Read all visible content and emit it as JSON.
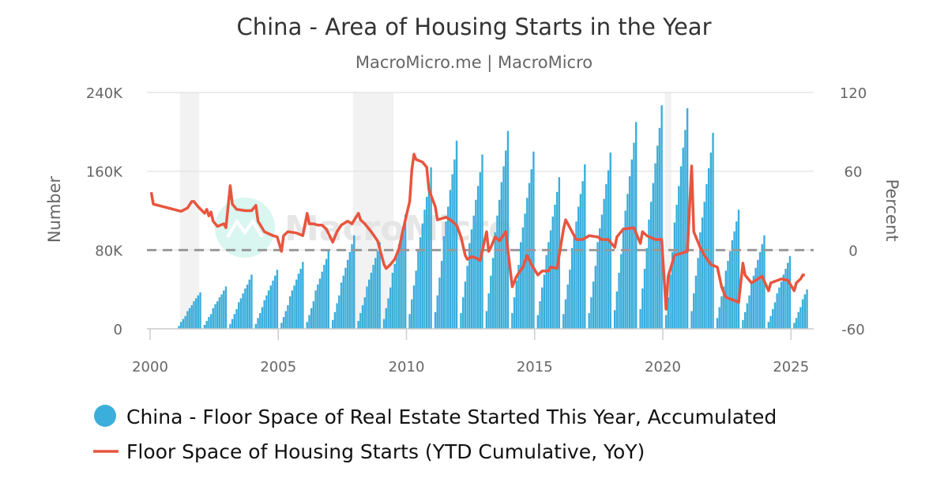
{
  "chart_data": {
    "type": "bar+line",
    "title": "China - Area of Housing Starts in the Year",
    "subtitle": "MacroMicro.me | MacroMicro",
    "watermark": "MacroMicro",
    "ylabel_left": "Number",
    "ylabel_right": "Percent",
    "ylim_left": [
      0,
      240000
    ],
    "ylim_right": [
      -60,
      120
    ],
    "yticks_left": [
      "0",
      "80K",
      "160K",
      "240K"
    ],
    "yticks_left_values": [
      0,
      80000,
      160000,
      240000
    ],
    "yticks_right": [
      "-60",
      "0",
      "60",
      "120"
    ],
    "yticks_right_values": [
      -60,
      0,
      60,
      120
    ],
    "xticks": [
      "2000",
      "2005",
      "2010",
      "2015",
      "2020",
      "2025"
    ],
    "xlim": [
      "2000-01",
      "2025-12"
    ],
    "grid": true,
    "legend_position": "bottom",
    "shaded_periods": [
      [
        "2001-03",
        "2001-11"
      ],
      [
        "2007-12",
        "2009-06"
      ],
      [
        "2020-02",
        "2020-04"
      ]
    ],
    "colors": {
      "bars": "#3caedb",
      "line": "#e8553e",
      "zero_line": "#999999",
      "shade": "#f2f2f2",
      "grid": "#e6e6e6"
    },
    "series": [
      {
        "name": "China - Floor Space of Real Estate Started This Year, Accumulated",
        "type": "bar",
        "axis": "left",
        "unit": "thousands",
        "months": [
          "Feb",
          "Mar",
          "Apr",
          "May",
          "Jun",
          "Jul",
          "Aug",
          "Sep",
          "Oct",
          "Nov",
          "Dec"
        ],
        "data": [
          {
            "year": 2001,
            "values": [
              3,
              7,
              10,
              13,
              18,
              21,
              24,
              28,
              31,
              34,
              37
            ]
          },
          {
            "year": 2002,
            "values": [
              4,
              8,
              12,
              15,
              21,
              25,
              28,
              32,
              35,
              39,
              43
            ]
          },
          {
            "year": 2003,
            "values": [
              5,
              10,
              15,
              20,
              27,
              31,
              36,
              41,
              45,
              50,
              55
            ]
          },
          {
            "year": 2004,
            "values": [
              5,
              11,
              16,
              22,
              29,
              34,
              39,
              44,
              49,
              54,
              60
            ]
          },
          {
            "year": 2005,
            "values": [
              6,
              12,
              18,
              24,
              33,
              39,
              44,
              50,
              56,
              61,
              68
            ]
          },
          {
            "year": 2006,
            "values": [
              7,
              14,
              21,
              28,
              39,
              45,
              51,
              58,
              65,
              71,
              79
            ]
          },
          {
            "year": 2007,
            "values": [
              9,
              17,
              26,
              34,
              47,
              54,
              62,
              70,
              78,
              86,
              95
            ]
          },
          {
            "year": 2008,
            "values": [
              8,
              16,
              24,
              32,
              43,
              50,
              57,
              65,
              72,
              79,
              88
            ]
          },
          {
            "year": 2009,
            "values": [
              10,
              21,
              31,
              42,
              57,
              66,
              75,
              86,
              95,
              104,
              116
            ]
          },
          {
            "year": 2010,
            "values": [
              15,
              30,
              44,
              59,
              80,
              93,
              107,
              121,
              134,
              148,
              164
            ]
          },
          {
            "year": 2011,
            "values": [
              17,
              34,
              52,
              69,
              94,
              109,
              124,
              141,
              157,
              172,
              191
            ]
          },
          {
            "year": 2012,
            "values": [
              16,
              32,
              48,
              64,
              87,
              101,
              115,
              131,
              145,
              159,
              177
            ]
          },
          {
            "year": 2013,
            "values": [
              18,
              36,
              54,
              72,
              98,
              115,
              131,
              149,
              165,
              181,
              201
            ]
          },
          {
            "year": 2014,
            "values": [
              16,
              32,
              49,
              65,
              88,
              103,
              117,
              133,
              148,
              162,
              180
            ]
          },
          {
            "year": 2015,
            "values": [
              14,
              28,
              42,
              55,
              75,
              88,
              100,
              114,
              126,
              139,
              154
            ]
          },
          {
            "year": 2016,
            "values": [
              15,
              30,
              45,
              60,
              82,
              95,
              109,
              124,
              137,
              150,
              167
            ]
          },
          {
            "year": 2017,
            "values": [
              16,
              32,
              48,
              64,
              88,
              102,
              116,
              132,
              147,
              161,
              179
            ]
          },
          {
            "year": 2018,
            "values": [
              19,
              38,
              57,
              76,
              103,
              120,
              137,
              155,
              172,
              189,
              210
            ]
          },
          {
            "year": 2019,
            "values": [
              20,
              41,
              61,
              82,
              111,
              129,
              148,
              168,
              186,
              204,
              227
            ]
          },
          {
            "year": 2020,
            "values": [
              14,
              32,
              55,
              78,
              108,
              126,
              145,
              165,
              184,
              202,
              224
            ]
          },
          {
            "year": 2021,
            "values": [
              18,
              36,
              54,
              72,
              98,
              113,
              129,
              147,
              163,
              179,
              199
            ]
          },
          {
            "year": 2022,
            "values": [
              11,
              22,
              33,
              43,
              59,
              69,
              79,
              90,
              99,
              109,
              121
            ]
          },
          {
            "year": 2023,
            "values": [
              9,
              17,
              26,
              34,
              47,
              54,
              62,
              70,
              78,
              86,
              95
            ]
          },
          {
            "year": 2024,
            "values": [
              7,
              13,
              20,
              27,
              36,
              42,
              48,
              55,
              61,
              67,
              74
            ]
          },
          {
            "year": 2025,
            "values": [
              6,
              11,
              17,
              22,
              30,
              35,
              40
            ]
          }
        ]
      },
      {
        "name": "Floor Space of Housing Starts (YTD Cumulative, YoY)",
        "type": "line",
        "axis": "right",
        "unit": "percent",
        "points": [
          [
            "2000-01",
            44
          ],
          [
            "2000-02",
            35
          ],
          [
            "2001-03",
            29.5
          ],
          [
            "2001-06",
            32
          ],
          [
            "2001-08",
            37
          ],
          [
            "2001-09",
            37
          ],
          [
            "2001-11",
            33
          ],
          [
            "2002-02",
            28
          ],
          [
            "2002-03",
            31
          ],
          [
            "2002-04",
            26
          ],
          [
            "2002-05",
            29
          ],
          [
            "2002-06",
            22
          ],
          [
            "2002-08",
            18
          ],
          [
            "2002-11",
            20
          ],
          [
            "2002-12",
            17
          ],
          [
            "2003-02",
            49
          ],
          [
            "2003-03",
            35
          ],
          [
            "2003-05",
            31
          ],
          [
            "2003-09",
            30
          ],
          [
            "2003-12",
            30
          ],
          [
            "2004-02",
            34
          ],
          [
            "2004-03",
            22
          ],
          [
            "2004-06",
            14
          ],
          [
            "2004-10",
            11
          ],
          [
            "2004-12",
            10
          ],
          [
            "2005-02",
            -1
          ],
          [
            "2005-03",
            11
          ],
          [
            "2005-05",
            14
          ],
          [
            "2005-09",
            13
          ],
          [
            "2005-12",
            11
          ],
          [
            "2006-02",
            28
          ],
          [
            "2006-03",
            20
          ],
          [
            "2006-05",
            20
          ],
          [
            "2006-07",
            19
          ],
          [
            "2006-09",
            19
          ],
          [
            "2006-11",
            16
          ],
          [
            "2007-02",
            6
          ],
          [
            "2007-04",
            14
          ],
          [
            "2007-06",
            19
          ],
          [
            "2007-09",
            22
          ],
          [
            "2007-11",
            20
          ],
          [
            "2008-02",
            28
          ],
          [
            "2008-03",
            23
          ],
          [
            "2008-05",
            20
          ],
          [
            "2008-08",
            14
          ],
          [
            "2008-11",
            7
          ],
          [
            "2009-02",
            -11
          ],
          [
            "2009-03",
            -14
          ],
          [
            "2009-05",
            -11
          ],
          [
            "2009-07",
            -7
          ],
          [
            "2009-09",
            1
          ],
          [
            "2009-11",
            16
          ],
          [
            "2010-02",
            37
          ],
          [
            "2010-03",
            61
          ],
          [
            "2010-04",
            73
          ],
          [
            "2010-05",
            69
          ],
          [
            "2010-08",
            67
          ],
          [
            "2010-10",
            63
          ],
          [
            "2010-11",
            46
          ],
          [
            "2011-02",
            33
          ],
          [
            "2011-03",
            23
          ],
          [
            "2011-05",
            24
          ],
          [
            "2011-07",
            25
          ],
          [
            "2011-09",
            23
          ],
          [
            "2011-12",
            19
          ],
          [
            "2012-02",
            10
          ],
          [
            "2012-04",
            -4
          ],
          [
            "2012-05",
            -7
          ],
          [
            "2012-07",
            -5
          ],
          [
            "2012-09",
            -6
          ],
          [
            "2012-11",
            -8
          ],
          [
            "2013-02",
            14
          ],
          [
            "2013-03",
            -1
          ],
          [
            "2013-04",
            2
          ],
          [
            "2013-06",
            10
          ],
          [
            "2013-08",
            7
          ],
          [
            "2013-11",
            14
          ],
          [
            "2014-02",
            -28
          ],
          [
            "2014-04",
            -20
          ],
          [
            "2014-07",
            -13
          ],
          [
            "2014-09",
            -4
          ],
          [
            "2014-11",
            -11
          ],
          [
            "2015-02",
            -19
          ],
          [
            "2015-04",
            -16
          ],
          [
            "2015-07",
            -16
          ],
          [
            "2015-08",
            -13
          ],
          [
            "2015-11",
            -14
          ],
          [
            "2016-02",
            16
          ],
          [
            "2016-03",
            23
          ],
          [
            "2016-06",
            14
          ],
          [
            "2016-08",
            8
          ],
          [
            "2016-11",
            8
          ],
          [
            "2017-02",
            11
          ],
          [
            "2017-06",
            10
          ],
          [
            "2017-08",
            8
          ],
          [
            "2017-11",
            8
          ],
          [
            "2018-02",
            2
          ],
          [
            "2018-03",
            10
          ],
          [
            "2018-06",
            16
          ],
          [
            "2018-11",
            17
          ],
          [
            "2019-02",
            5
          ],
          [
            "2019-03",
            14
          ],
          [
            "2019-05",
            11
          ],
          [
            "2019-09",
            8
          ],
          [
            "2019-12",
            8
          ],
          [
            "2020-02",
            -45
          ],
          [
            "2020-03",
            -20
          ],
          [
            "2020-06",
            -4
          ],
          [
            "2020-12",
            -1
          ],
          [
            "2021-02",
            64
          ],
          [
            "2021-03",
            14
          ],
          [
            "2021-06",
            2
          ],
          [
            "2021-08",
            -4
          ],
          [
            "2021-11",
            -11
          ],
          [
            "2022-02",
            -13
          ],
          [
            "2022-04",
            -28
          ],
          [
            "2022-06",
            -36
          ],
          [
            "2022-11",
            -39
          ],
          [
            "2022-12",
            -40
          ],
          [
            "2023-02",
            -10
          ],
          [
            "2023-03",
            -19
          ],
          [
            "2023-06",
            -25
          ],
          [
            "2023-08",
            -23
          ],
          [
            "2023-11",
            -20
          ],
          [
            "2024-02",
            -31
          ],
          [
            "2024-03",
            -25
          ],
          [
            "2024-08",
            -22
          ],
          [
            "2024-11",
            -23
          ],
          [
            "2025-02",
            -31
          ],
          [
            "2025-03",
            -25
          ],
          [
            "2025-05",
            -22
          ],
          [
            "2025-06",
            -19
          ],
          [
            "2025-07",
            -19
          ]
        ]
      }
    ]
  }
}
